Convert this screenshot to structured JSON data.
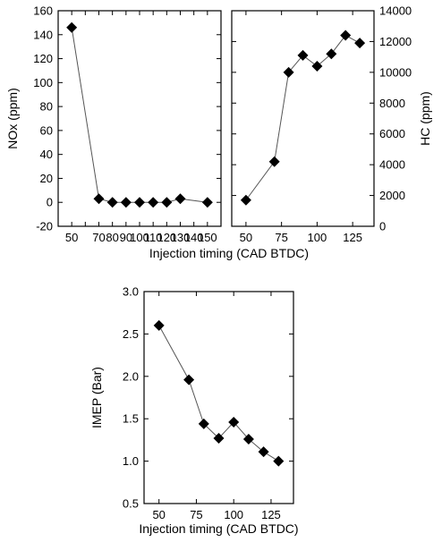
{
  "chart_data": [
    {
      "type": "line",
      "marker": "diamond",
      "x": [
        50,
        70,
        80,
        90,
        100,
        110,
        120,
        130,
        150
      ],
      "series": [
        {
          "values": [
            146,
            3,
            0,
            0,
            0,
            0,
            0,
            3,
            0
          ]
        }
      ],
      "ylabel": "NOx (ppm)",
      "xlabel": "",
      "xlim": [
        40,
        160
      ],
      "ylim": [
        -20,
        160
      ],
      "xticks": [
        50,
        60,
        70,
        80,
        90,
        100,
        110,
        120,
        130,
        140,
        150
      ],
      "xtick_labels": [
        "50",
        "",
        "70",
        "80",
        "90",
        "100",
        "110",
        "120",
        "130",
        "140",
        "150"
      ],
      "yticks": [
        -20,
        0,
        20,
        40,
        60,
        80,
        100,
        120,
        140,
        160
      ],
      "yaxis_side": "left",
      "grid": false
    },
    {
      "type": "line",
      "marker": "diamond",
      "x": [
        50,
        70,
        80,
        90,
        100,
        110,
        120,
        130
      ],
      "series": [
        {
          "values": [
            1700,
            4200,
            10000,
            11100,
            10400,
            11200,
            12400,
            11900
          ]
        }
      ],
      "ylabel": "HC (ppm)",
      "xlabel": "",
      "xlim": [
        40,
        140
      ],
      "ylim": [
        0,
        14000
      ],
      "xticks": [
        50,
        75,
        100,
        125
      ],
      "xtick_labels": [
        "50",
        "75",
        "100",
        "125"
      ],
      "yticks": [
        0,
        2000,
        4000,
        6000,
        8000,
        10000,
        12000,
        14000
      ],
      "yaxis_side": "right",
      "grid": false
    },
    {
      "type": "line",
      "marker": "diamond",
      "x": [
        50,
        70,
        80,
        90,
        100,
        110,
        120,
        130
      ],
      "series": [
        {
          "values": [
            2.6,
            1.96,
            1.44,
            1.27,
            1.46,
            1.26,
            1.11,
            1.0
          ]
        }
      ],
      "ylabel": "IMEP (Bar)",
      "xlabel": "Injection timing (CAD BTDC)",
      "xlim": [
        40,
        140
      ],
      "ylim": [
        0.5,
        3.0
      ],
      "xticks": [
        50,
        75,
        100,
        125
      ],
      "xtick_labels": [
        "50",
        "75",
        "100",
        "125"
      ],
      "yticks": [
        0.5,
        1.0,
        1.5,
        2.0,
        2.5,
        3.0
      ],
      "ytick_labels": [
        "0.5",
        "1.0",
        "1.5",
        "2.0",
        "2.5",
        "3.0"
      ],
      "yaxis_side": "left",
      "grid": false
    }
  ],
  "shared_top_xlabel": "Injection timing (CAD BTDC)"
}
